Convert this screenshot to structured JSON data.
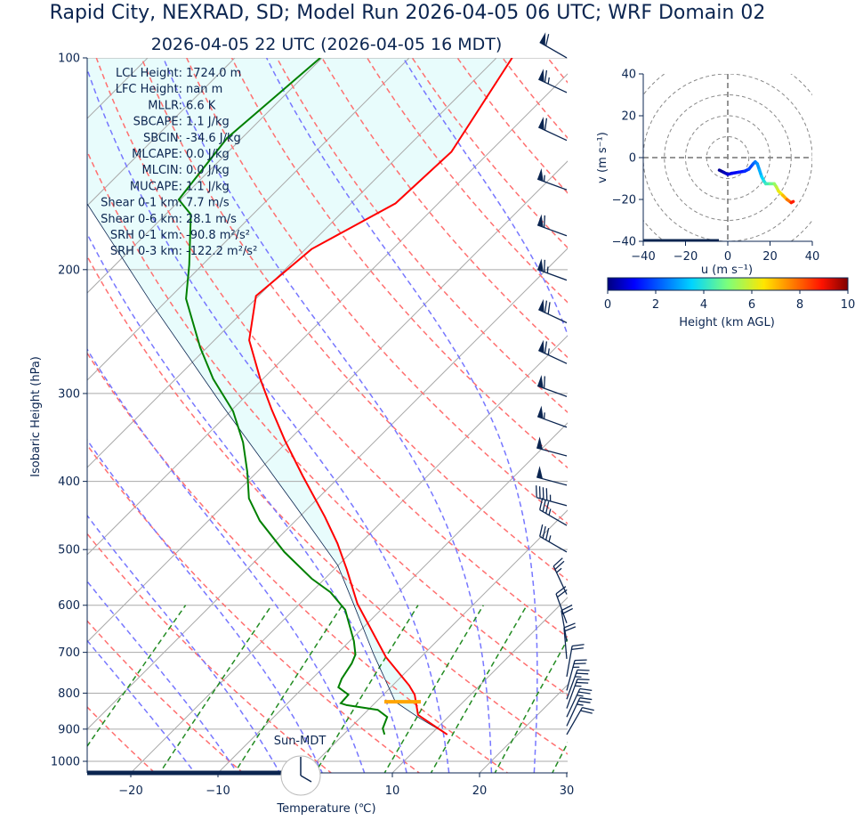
{
  "header": {
    "title": "Rapid City, NEXRAD, SD; Model Run 2026-04-05 06 UTC; WRF Domain 02",
    "subtitle": "2026-04-05 22 UTC  (2026-04-05 16 MDT)"
  },
  "indices": [
    {
      "label": "LCL Height:",
      "value": "1724.0 m"
    },
    {
      "label": "LFC Height:",
      "value": "nan m"
    },
    {
      "label": "MLLR:",
      "value": "6.6 K"
    },
    {
      "label": "SBCAPE:",
      "value": "1.1 J/kg"
    },
    {
      "label": "SBCIN:",
      "value": "-34.6 J/kg"
    },
    {
      "label": "MLCAPE:",
      "value": "0.0 J/kg"
    },
    {
      "label": "MLCIN:",
      "value": "0.0 J/kg"
    },
    {
      "label": "MUCAPE:",
      "value": "1.1 J/kg"
    },
    {
      "label": "Shear 0-1 km:",
      "value": "7.7 m/s"
    },
    {
      "label": "Shear 0-6 km:",
      "value": "28.1 m/s"
    },
    {
      "label": "SRH 0-1 km:",
      "value": "-90.8 m²/s²"
    },
    {
      "label": "SRH 0-3 km:",
      "value": "-122.2 m²/s²"
    }
  ],
  "clock": {
    "label": "Sun-MDT",
    "hour": 16
  },
  "colors": {
    "temperature": "#ff0000",
    "dewpoint": "#008000",
    "parcel": "#0b2550",
    "lcl": "#ffa500",
    "cin_fill": "#e8fcfc",
    "dry_adiabat": "#ff7070",
    "moist_adiabat": "#7777ff",
    "mixing_ratio": "#228b22",
    "axis": "#0b2550"
  },
  "chart_data": [
    {
      "type": "line",
      "name": "skew-t",
      "xlabel": "Temperature (℃)",
      "ylabel": "Isobaric Height (hPa)",
      "xlim": [
        -25,
        30
      ],
      "ylim": [
        1038,
        100
      ],
      "xticks": [
        "−20",
        "−10",
        "0",
        "10",
        "20",
        "30"
      ],
      "xtick_values": [
        -20,
        -10,
        0,
        10,
        20,
        30
      ],
      "yticks": [
        "100",
        "200",
        "300",
        "400",
        "500",
        "600",
        "700",
        "800",
        "900",
        "1000"
      ],
      "ytick_values": [
        100,
        200,
        300,
        400,
        500,
        600,
        700,
        800,
        900,
        1000
      ],
      "lcl_pressure": 823,
      "temperature": {
        "p": [
          916,
          859,
          804,
          780,
          711,
          597,
          534,
          490,
          449,
          393,
          350,
          316,
          286,
          252,
          218,
          187,
          161,
          136,
          100
        ],
        "T": [
          11.9,
          6.3,
          3.6,
          1.9,
          -4.0,
          -13.4,
          -18.5,
          -22.6,
          -27.1,
          -34.3,
          -40.4,
          -45.5,
          -50.3,
          -56.0,
          -60.3,
          -59.3,
          -54.9,
          -54.4,
          -58.2
        ]
      },
      "dewpoint": {
        "p": [
          916,
          898,
          865,
          845,
          832,
          827,
          804,
          785,
          763,
          726,
          705,
          675,
          609,
          575,
          550,
          504,
          455,
          423,
          388,
          352,
          318,
          286,
          258,
          220,
          197,
          167,
          159,
          130,
          100
        ],
        "T": [
          4.7,
          3.8,
          3.0,
          1.1,
          -3.0,
          -3.9,
          -4.0,
          -6.0,
          -6.6,
          -7.2,
          -7.8,
          -9.5,
          -14.1,
          -17.8,
          -21.5,
          -27.7,
          -34.1,
          -37.9,
          -41.1,
          -45.0,
          -49.7,
          -55.7,
          -60.8,
          -68.0,
          -71.5,
          -77.1,
          -80.2,
          -81.7,
          -80.2
        ]
      },
      "parcel": {
        "p": [
          916,
          865,
          823,
          705,
          600,
          527,
          430,
          312,
          223,
          161,
          100
        ],
        "T": [
          11.9,
          6.5,
          2.2,
          -5.7,
          -13.6,
          -20.0,
          -32.2,
          -51.6,
          -71.5,
          -90.3,
          -130
        ]
      },
      "dry_adiabats_C_at_1000": [
        -30,
        -20,
        -10,
        0,
        10,
        20,
        30,
        40,
        50,
        60,
        70,
        80,
        90,
        100,
        110,
        120,
        130,
        140,
        150,
        160
      ],
      "moist_adiabats_C_at_1000": [
        -15,
        -10,
        -5,
        0,
        5,
        10,
        15,
        20,
        25,
        30,
        35
      ],
      "mixing_ratios_gkg": [
        0.4,
        1,
        2,
        4,
        7,
        10,
        16,
        24,
        32
      ],
      "wind_barbs": [
        {
          "p": 100,
          "kt": 60,
          "dir": 300
        },
        {
          "p": 112,
          "kt": 65,
          "dir": 295
        },
        {
          "p": 131,
          "kt": 60,
          "dir": 295
        },
        {
          "p": 154,
          "kt": 55,
          "dir": 290
        },
        {
          "p": 179,
          "kt": 60,
          "dir": 290
        },
        {
          "p": 207,
          "kt": 65,
          "dir": 290
        },
        {
          "p": 238,
          "kt": 70,
          "dir": 295
        },
        {
          "p": 272,
          "kt": 65,
          "dir": 295
        },
        {
          "p": 303,
          "kt": 60,
          "dir": 290
        },
        {
          "p": 335,
          "kt": 55,
          "dir": 290
        },
        {
          "p": 368,
          "kt": 50,
          "dir": 285
        },
        {
          "p": 405,
          "kt": 50,
          "dir": 285
        },
        {
          "p": 433,
          "kt": 45,
          "dir": 285
        },
        {
          "p": 462,
          "kt": 35,
          "dir": 300
        },
        {
          "p": 504,
          "kt": 35,
          "dir": 300
        },
        {
          "p": 579,
          "kt": 25,
          "dir": 335
        },
        {
          "p": 636,
          "kt": 20,
          "dir": 340
        },
        {
          "p": 675,
          "kt": 20,
          "dir": 350
        },
        {
          "p": 715,
          "kt": 20,
          "dir": 355
        },
        {
          "p": 758,
          "kt": 20,
          "dir": 10
        },
        {
          "p": 793,
          "kt": 25,
          "dir": 15
        },
        {
          "p": 816,
          "kt": 25,
          "dir": 20
        },
        {
          "p": 841,
          "kt": 25,
          "dir": 20
        },
        {
          "p": 865,
          "kt": 25,
          "dir": 25
        },
        {
          "p": 891,
          "kt": 25,
          "dir": 25
        },
        {
          "p": 916,
          "kt": 20,
          "dir": 30
        }
      ]
    },
    {
      "type": "line",
      "name": "hodograph",
      "xlabel": "u (m s⁻¹)",
      "ylabel": "v (m s⁻¹)",
      "xlim": [
        -40,
        40
      ],
      "ylim": [
        -40,
        40
      ],
      "xticks": [
        "−40",
        "−20",
        "0",
        "20",
        "40"
      ],
      "xtick_values": [
        -40,
        -20,
        0,
        20,
        40
      ],
      "yticks": [
        "40",
        "20",
        "0",
        "−20",
        "−40"
      ],
      "ytick_values": [
        40,
        20,
        0,
        -20,
        -40
      ],
      "rings": [
        10,
        20,
        30,
        40,
        50
      ],
      "u": [
        -4,
        -2,
        0,
        2,
        5,
        8,
        10,
        12,
        13,
        14,
        15,
        16,
        17,
        18,
        20,
        22,
        23,
        24,
        26,
        28,
        30,
        31
      ],
      "v": [
        -6,
        -7,
        -8,
        -7.5,
        -7,
        -6.5,
        -5.5,
        -3,
        -2,
        -3,
        -6,
        -9,
        -11,
        -12.5,
        -12.5,
        -12.5,
        -14,
        -16,
        -18,
        -20,
        -21.5,
        -21
      ],
      "height_km": [
        0.2,
        0.5,
        0.8,
        1.0,
        1.3,
        1.6,
        1.9,
        2.2,
        2.5,
        2.8,
        3.1,
        3.5,
        3.9,
        4.3,
        4.8,
        5.3,
        5.8,
        6.3,
        7.0,
        7.8,
        8.8,
        9.5
      ],
      "colorbar": {
        "label": "Height (km AGL)",
        "ticks": [
          "0",
          "2",
          "4",
          "6",
          "8",
          "10"
        ],
        "range": [
          0,
          10
        ]
      }
    }
  ]
}
